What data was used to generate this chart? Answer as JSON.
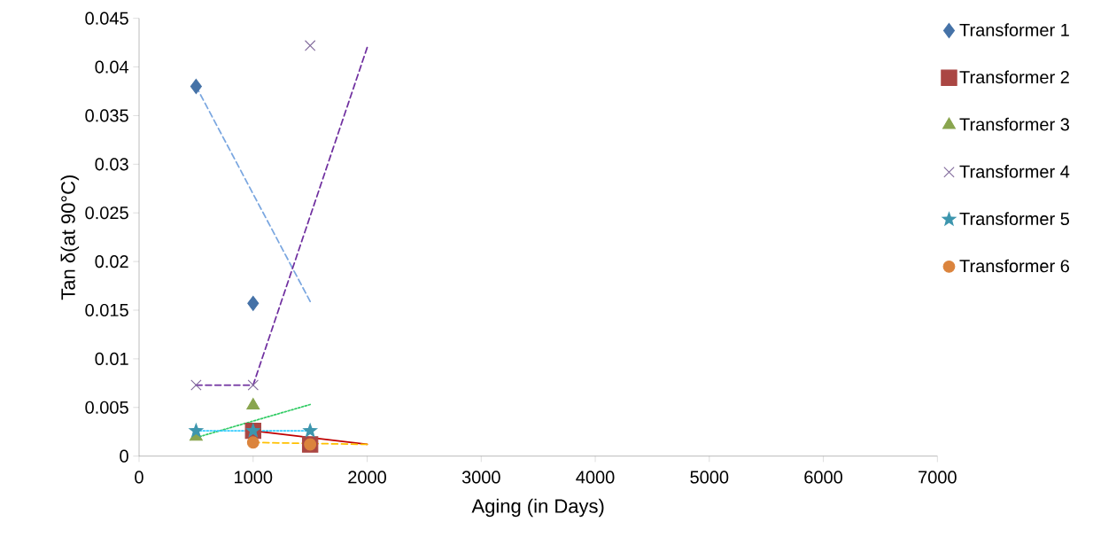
{
  "chart_data": {
    "type": "scatter",
    "xlabel": "Aging (in Days)",
    "ylabel": "Tan δ(at 90°C)",
    "xlim": [
      0,
      7000
    ],
    "xticks": [
      0,
      1000,
      2000,
      3000,
      4000,
      5000,
      6000,
      7000
    ],
    "ylim": [
      0,
      0.045
    ],
    "yticks": [
      0,
      0.005,
      0.01,
      0.015,
      0.02,
      0.025,
      0.03,
      0.035,
      0.04,
      0.045
    ],
    "grid": false,
    "legend": "right",
    "series": [
      {
        "name": "Transformer 1",
        "color": "#4572a7",
        "marker": "diamond",
        "x": [
          500,
          1000
        ],
        "values": [
          0.038,
          0.0157
        ]
      },
      {
        "name": "Transformer 2",
        "color": "#aa4643",
        "marker": "square",
        "x": [
          1000,
          1500
        ],
        "values": [
          0.0026,
          0.0012
        ]
      },
      {
        "name": "Transformer 3",
        "color": "#89a54e",
        "marker": "triangle",
        "x": [
          500,
          1000
        ],
        "values": [
          0.002,
          0.0052
        ]
      },
      {
        "name": "Transformer 4",
        "color": "#80699b",
        "marker": "cross",
        "x": [
          500,
          1000,
          1500
        ],
        "values": [
          0.0073,
          0.0073,
          0.0422
        ]
      },
      {
        "name": "Transformer 5",
        "color": "#3d96ae",
        "marker": "star",
        "x": [
          500,
          1000,
          1500
        ],
        "values": [
          0.0026,
          0.0026,
          0.0026
        ]
      },
      {
        "name": "Transformer 6",
        "color": "#db843d",
        "marker": "circle",
        "x": [
          1000,
          1500
        ],
        "values": [
          0.0014,
          0.0012
        ]
      },
      {
        "type": "line",
        "color": "#7ba7e0",
        "marker": "none",
        "line_style": "dashed",
        "x": [
          500,
          1500
        ],
        "values": [
          0.038,
          0.0159
        ]
      },
      {
        "type": "line",
        "color": "#c00000",
        "marker": "none",
        "line_style": "solid",
        "x": [
          1000,
          2000
        ],
        "values": [
          0.0026,
          0.0012
        ]
      },
      {
        "type": "line",
        "color": "#33cc66",
        "marker": "none",
        "line_style": "dotted",
        "x": [
          500,
          1500
        ],
        "values": [
          0.0019,
          0.0053
        ]
      },
      {
        "type": "line",
        "color": "#7030a0",
        "marker": "none",
        "line_style": "dashed",
        "x": [
          500,
          1000,
          2000
        ],
        "values": [
          0.0073,
          0.0073,
          0.042
        ]
      },
      {
        "type": "line",
        "color": "#33ccff",
        "marker": "none",
        "line_style": "dotted",
        "x": [
          500,
          1500
        ],
        "values": [
          0.0026,
          0.0026
        ]
      },
      {
        "type": "line",
        "color": "#ffc000",
        "marker": "none",
        "line_style": "dashed",
        "x": [
          1000,
          2000
        ],
        "values": [
          0.0014,
          0.0012
        ]
      }
    ]
  }
}
